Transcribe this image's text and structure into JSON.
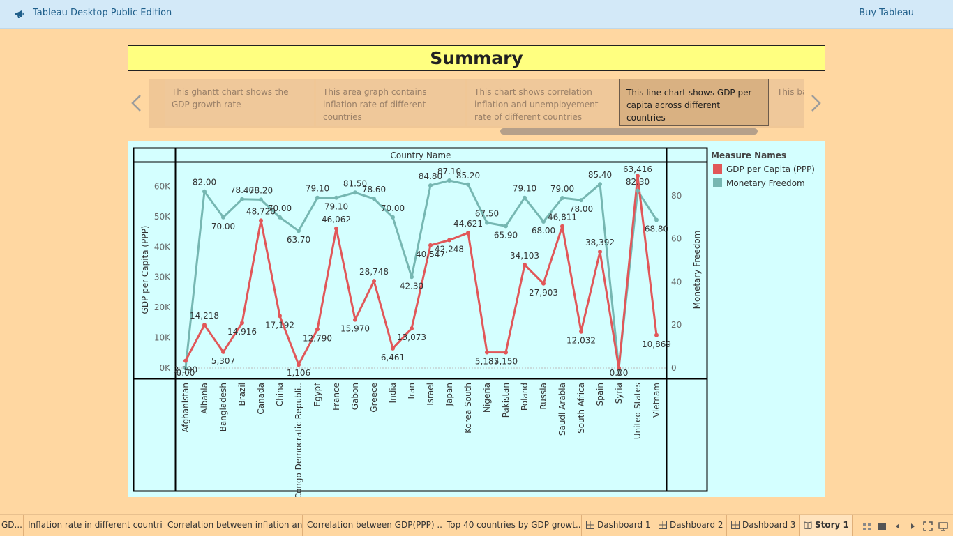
{
  "app": {
    "title": "Tableau Desktop Public Edition",
    "buy_label": "Buy Tableau"
  },
  "story": {
    "title": "Summary",
    "points": [
      {
        "label": "This ghantt chart shows the GDP growth rate"
      },
      {
        "label": "This area graph contains inflation rate of different countries"
      },
      {
        "label": "This chart shows correlation inflation and unemployement rate of different countries"
      },
      {
        "label": "This line chart shows GDP per capita across different countries"
      },
      {
        "label": "This ba… countr… GDP or…"
      }
    ],
    "active_index": 3
  },
  "legend": {
    "title": "Measure Names",
    "items": [
      {
        "label": "GDP per Capita (PPP)",
        "color": "#E15759"
      },
      {
        "label": "Monetary Freedom",
        "color": "#76B7B2"
      }
    ]
  },
  "chart_data": {
    "type": "line",
    "title": "",
    "column_header": "Country Name",
    "xlabel": "",
    "categories": [
      "Afghanistan",
      "Albania",
      "Bangladesh",
      "Brazil",
      "Canada",
      "China",
      "Congo Democratic Republi..",
      "Egypt",
      "France",
      "Gabon",
      "Greece",
      "India",
      "Iran",
      "Israel",
      "Japan",
      "Korea South",
      "Nigeria",
      "Pakistan",
      "Poland",
      "Russia",
      "Saudi Arabia",
      "South Africa",
      "Spain",
      "Syria",
      "United States",
      "Vietnam"
    ],
    "series": [
      {
        "name": "GDP per Capita (PPP)",
        "axis": "left",
        "color": "#E15759",
        "values": [
          2390,
          14218,
          5307,
          14916,
          48720,
          17192,
          1106,
          12790,
          46062,
          15970,
          28748,
          6461,
          13073,
          40547,
          42248,
          44621,
          5187,
          5150,
          34103,
          27903,
          46811,
          12032,
          38392,
          0,
          63416,
          10869
        ],
        "labels": [
          "2,390",
          "14,218",
          "5,307",
          "14,916",
          "48,720",
          "17,192",
          "1,106",
          "12,790",
          "46,062",
          "15,970",
          "28,748",
          "6,461",
          "13,073",
          "40,547",
          "42,248",
          "44,621",
          "5,187",
          "5,150",
          "34,103",
          "27,903",
          "46,811",
          "12,032",
          "38,392",
          "0",
          "63,416",
          "10,869"
        ]
      },
      {
        "name": "Monetary Freedom",
        "axis": "right",
        "color": "#76B7B2",
        "values": [
          0.0,
          82.0,
          70.0,
          78.4,
          78.2,
          70.0,
          63.7,
          79.1,
          79.1,
          81.5,
          78.6,
          70.0,
          42.3,
          84.8,
          87.1,
          85.2,
          67.5,
          65.9,
          79.1,
          68.0,
          79.0,
          78.0,
          85.4,
          0.0,
          82.3,
          68.8
        ],
        "labels": [
          "0.00",
          "82.00",
          "70.00",
          "78.40",
          "78.20",
          "70.00",
          "63.70",
          "79.10",
          "79.10",
          "81.50",
          "78.60",
          "70.00",
          "42.30",
          "84.80",
          "87.10",
          "85.20",
          "67.50",
          "65.90",
          "79.10",
          "68.00",
          "79.00",
          "78.00",
          "85.40",
          "0.00",
          "82.30",
          "68.80"
        ]
      }
    ],
    "y_left": {
      "label": "GDP per Capita (PPP)",
      "range": [
        0,
        64000
      ],
      "ticks": [
        0,
        10000,
        20000,
        30000,
        40000,
        50000,
        60000
      ],
      "tick_labels": [
        "0K",
        "10K",
        "20K",
        "30K",
        "40K",
        "50K",
        "60K"
      ]
    },
    "y_right": {
      "label": "Monetary Freedom",
      "range": [
        0,
        90
      ],
      "ticks": [
        0,
        20,
        40,
        60,
        80
      ],
      "tick_labels": [
        "0",
        "20",
        "40",
        "60",
        "80"
      ]
    },
    "grid": false,
    "legend_position": "right"
  },
  "tabs": [
    {
      "label": "GD...",
      "icon": ""
    },
    {
      "label": "Inflation rate in different countries",
      "icon": ""
    },
    {
      "label": "Correlation between inflation an...",
      "icon": ""
    },
    {
      "label": "Correlation between GDP(PPP) ...",
      "icon": ""
    },
    {
      "label": "Top 40 countries by GDP growt...",
      "icon": ""
    },
    {
      "label": "Dashboard 1",
      "icon": "dashboard-icon"
    },
    {
      "label": "Dashboard 2",
      "icon": "dashboard-icon"
    },
    {
      "label": "Dashboard 3",
      "icon": "dashboard-icon"
    },
    {
      "label": "Story 1",
      "icon": "story-icon"
    }
  ]
}
